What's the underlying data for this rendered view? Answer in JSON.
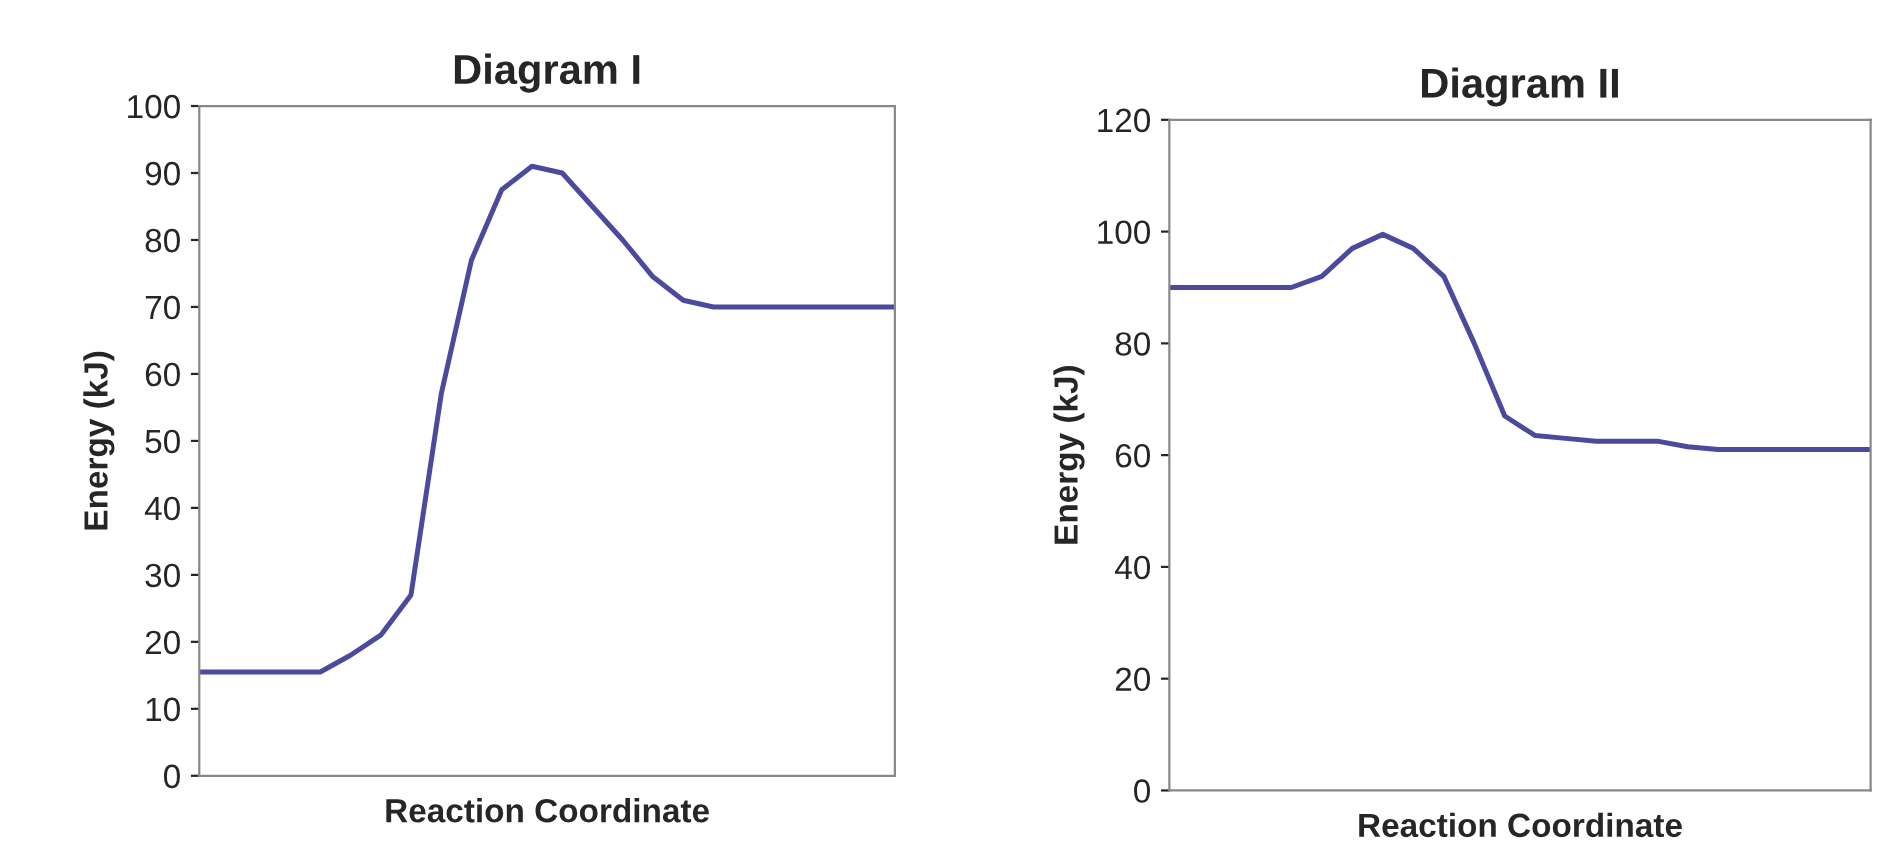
{
  "chart_data": [
    {
      "type": "line",
      "title": "Diagram I",
      "xlabel": "Reaction Coordinate",
      "ylabel": "Energy (kJ)",
      "categories": [
        null,
        null,
        null,
        null,
        null,
        null,
        null,
        null,
        null,
        null,
        null,
        null,
        null,
        null,
        null,
        null,
        null,
        null,
        null,
        null,
        null,
        null,
        null,
        null
      ],
      "series": [
        {
          "color": "#4b4a9c",
          "values": [
            15.5,
            15.5,
            15.5,
            15.5,
            15.5,
            18,
            21,
            27,
            57,
            77,
            87.5,
            91,
            90,
            85,
            80,
            74.5,
            71,
            70,
            70,
            70,
            70,
            70,
            70,
            70
          ]
        }
      ],
      "ylim": [
        0,
        100
      ],
      "yticks": [
        0,
        10,
        20,
        30,
        40,
        50,
        60,
        70,
        80,
        90,
        100
      ],
      "tick_labels": "y",
      "grid": false,
      "legend": false,
      "marker": "none",
      "line_style": "solid"
    },
    {
      "type": "line",
      "title": "Diagram II",
      "xlabel": "Reaction Coordinate",
      "ylabel": "Energy (kJ)",
      "categories": [
        null,
        null,
        null,
        null,
        null,
        null,
        null,
        null,
        null,
        null,
        null,
        null,
        null,
        null,
        null,
        null,
        null,
        null,
        null,
        null,
        null,
        null,
        null,
        null
      ],
      "series": [
        {
          "color": "#4b4a9c",
          "values": [
            90,
            90,
            90,
            90,
            90,
            92,
            97,
            99.5,
            97,
            92,
            80,
            67,
            63.5,
            63,
            62.5,
            62.5,
            62.5,
            61.5,
            61,
            61,
            61,
            61,
            61,
            61
          ]
        }
      ],
      "ylim": [
        0,
        120
      ],
      "yticks": [
        0,
        20,
        40,
        60,
        80,
        100,
        120
      ],
      "tick_labels": "y",
      "grid": false,
      "legend": false,
      "marker": "none",
      "line_style": "solid"
    }
  ]
}
